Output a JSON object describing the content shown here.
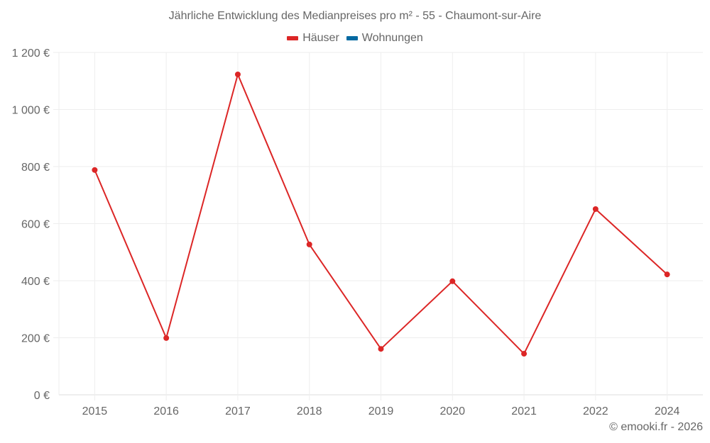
{
  "chart_data": {
    "type": "line",
    "title": "Jährliche Entwicklung des Medianpreises pro m² - 55 - Chaumont-sur-Aire",
    "xlabel": "",
    "ylabel": "",
    "categories": [
      "2015",
      "2016",
      "2017",
      "2018",
      "2019",
      "2020",
      "2021",
      "2022",
      "2024"
    ],
    "series": [
      {
        "name": "Häuser",
        "color": "#dc2626",
        "values": [
          788,
          199,
          1123,
          527,
          161,
          398,
          144,
          651,
          422
        ]
      },
      {
        "name": "Wohnungen",
        "color": "#0369a1",
        "values": []
      }
    ],
    "ylim": [
      0,
      1200
    ],
    "yticks": [
      0,
      200,
      400,
      600,
      800,
      1000,
      1200
    ],
    "ytick_labels": [
      "0 €",
      "200 €",
      "400 €",
      "600 €",
      "800 €",
      "1 000 €",
      "1 200 €"
    ],
    "grid": true,
    "legend_position": "top"
  },
  "title": "Jährliche Entwicklung des Medianpreises pro m² - 55 - Chaumont-sur-Aire",
  "legend": [
    {
      "label": "Häuser",
      "color": "#dc2626"
    },
    {
      "label": "Wohnungen",
      "color": "#0369a1"
    }
  ],
  "credit": "© emooki.fr - 2026"
}
